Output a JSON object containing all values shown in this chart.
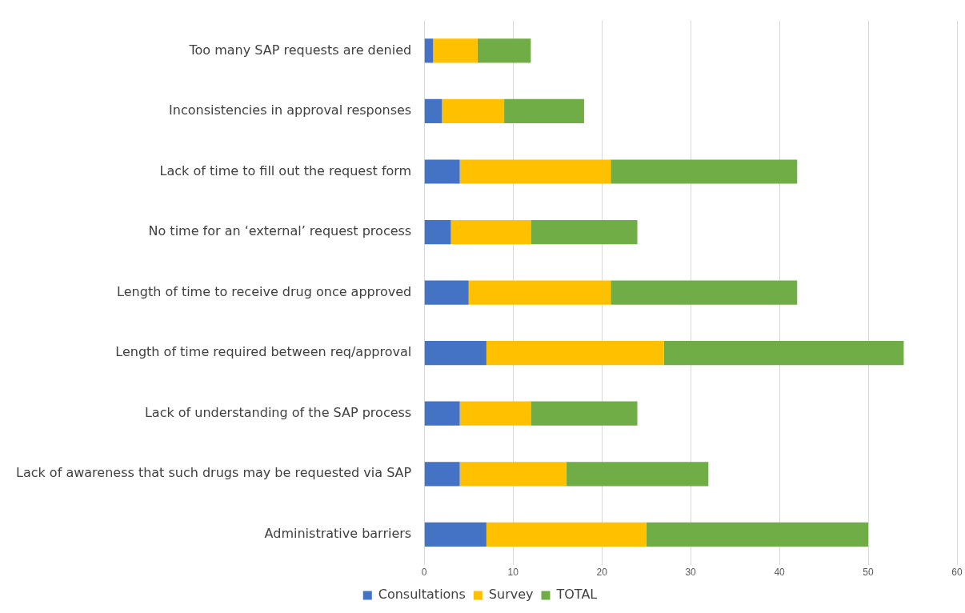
{
  "chart_data": {
    "type": "bar",
    "orientation": "horizontal",
    "stacked": true,
    "categories": [
      "Too many SAP requests are denied",
      "Inconsistencies in approval responses",
      "Lack of time to fill out the request form",
      "No time for an ‘external’ request process",
      "Length of time to receive drug once approved",
      "Length of time required between req/approval",
      "Lack of understanding of the SAP process",
      "Lack of awareness that such drugs may be requested via SAP",
      "Administrative barriers"
    ],
    "series": [
      {
        "name": "Consultations",
        "color": "#4472c4",
        "values": [
          1,
          2,
          4,
          3,
          5,
          7,
          4,
          4,
          7
        ]
      },
      {
        "name": "Survey",
        "color": "#ffc000",
        "values": [
          5,
          7,
          17,
          9,
          16,
          20,
          8,
          12,
          18
        ]
      },
      {
        "name": "TOTAL",
        "color": "#70ad47",
        "values": [
          6,
          9,
          21,
          12,
          21,
          27,
          12,
          16,
          25
        ]
      }
    ],
    "xlim": [
      0,
      60
    ],
    "xticks": [
      0,
      10,
      20,
      30,
      40,
      50,
      60
    ],
    "grid": "x",
    "legend": "bottom"
  }
}
